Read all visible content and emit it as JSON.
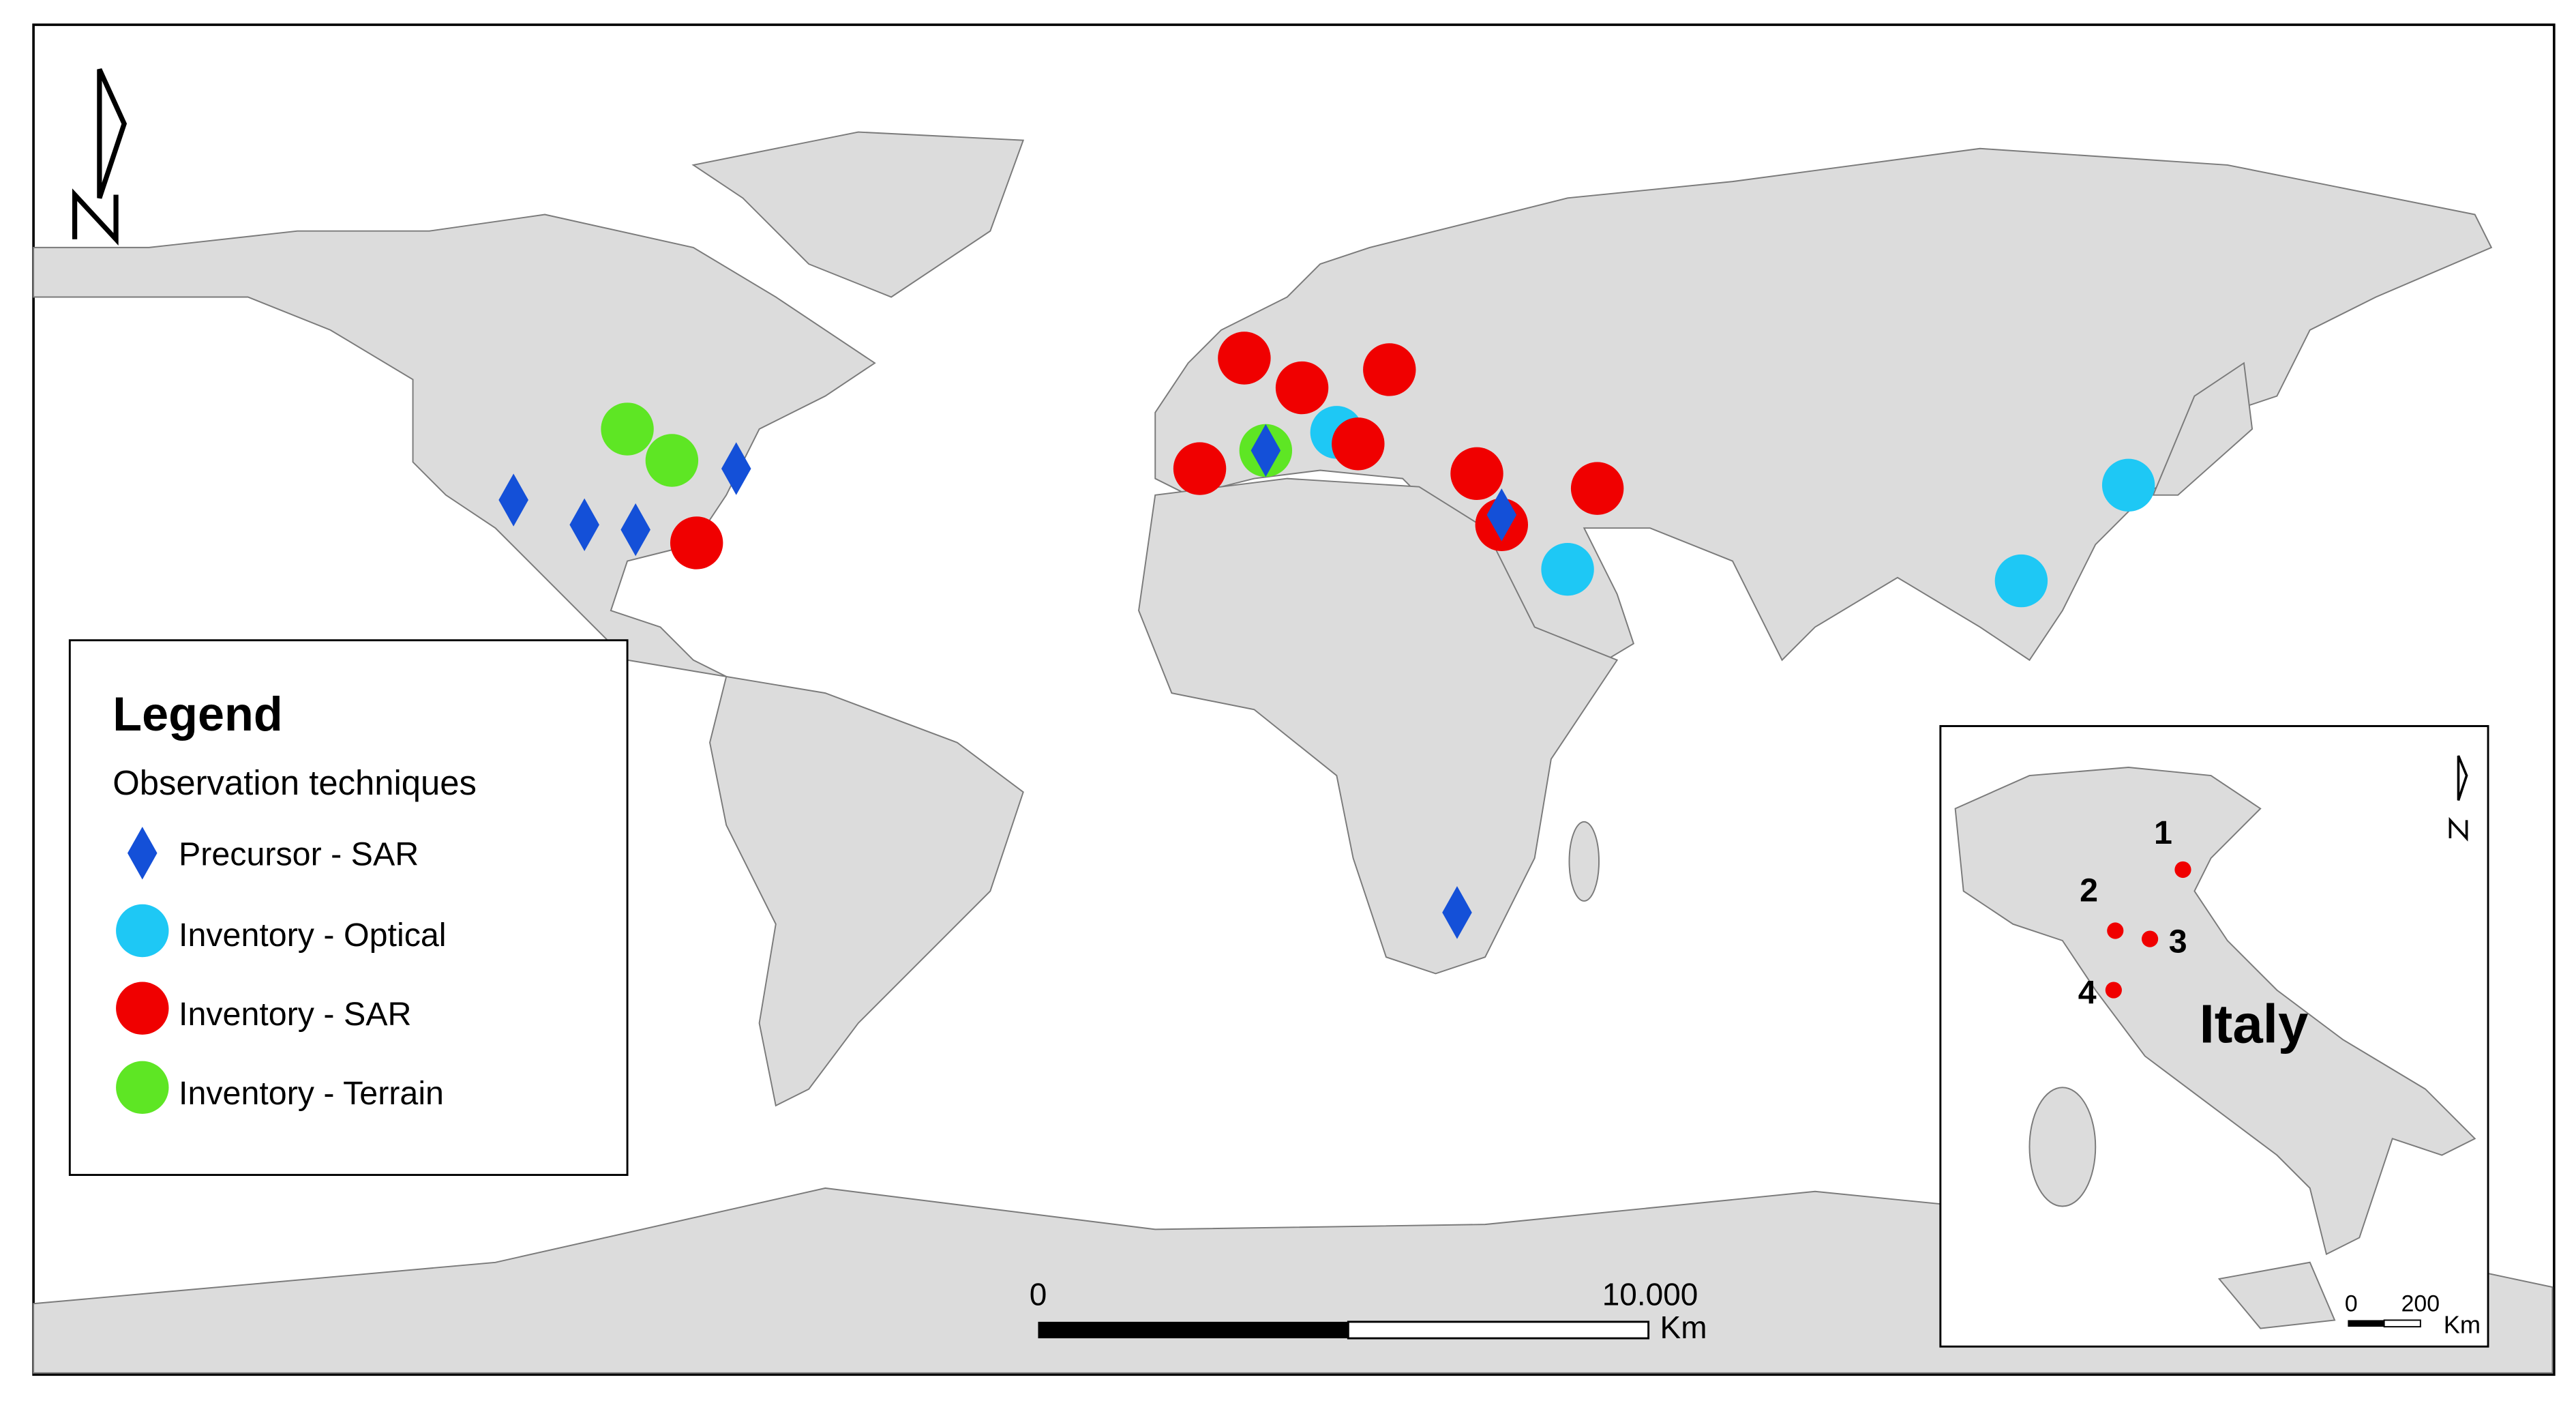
{
  "legend": {
    "title": "Legend",
    "subtitle": "Observation techniques",
    "items": [
      "Precursor - SAR",
      "Inventory - Optical",
      "Inventory - SAR",
      "Inventory - Terrain"
    ]
  },
  "scale_bar": {
    "labels": [
      "0",
      "10.000"
    ],
    "unit": "Km"
  },
  "inset": {
    "title": "Italy",
    "sites": [
      "1",
      "2",
      "3",
      "4"
    ],
    "scale_bar": {
      "labels": [
        "0",
        "200"
      ],
      "unit": "Km"
    }
  }
}
